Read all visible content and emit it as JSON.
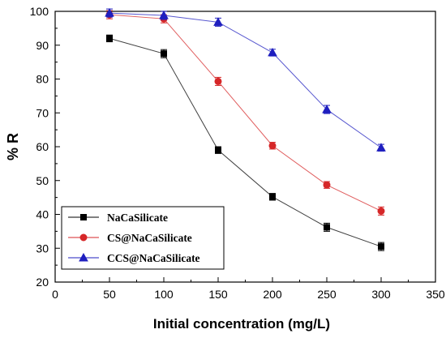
{
  "chart_data": {
    "type": "line",
    "xlabel": "Initial concentration (mg/L)",
    "ylabel": "% R",
    "xlim": [
      0,
      350
    ],
    "ylim": [
      20,
      100
    ],
    "x_ticks": [
      0,
      50,
      100,
      150,
      200,
      250,
      300,
      350
    ],
    "y_ticks": [
      20,
      30,
      40,
      50,
      60,
      70,
      80,
      90,
      100
    ],
    "grid": false,
    "legend_placement": "bottom-left",
    "x": [
      50,
      100,
      150,
      200,
      250,
      300
    ],
    "series": [
      {
        "name": "NaCaSilicate",
        "marker": "square",
        "color": "#000000",
        "values": [
          92,
          87.5,
          59,
          45.2,
          36.2,
          30.5
        ],
        "errors": [
          1.0,
          1.2,
          1.0,
          1.0,
          1.2,
          1.2
        ]
      },
      {
        "name": "CS@NaCaSilicate",
        "marker": "circle",
        "color": "#d62728",
        "values": [
          99,
          97.8,
          79.3,
          60.3,
          48.7,
          41
        ],
        "errors": [
          1.2,
          1.2,
          1.2,
          1.0,
          1.0,
          1.2
        ]
      },
      {
        "name": "CCS@NaCaSilicate",
        "marker": "triangle",
        "color": "#1f1fbf",
        "values": [
          99.5,
          98.8,
          96.8,
          87.8,
          71,
          59.7
        ],
        "errors": [
          1.2,
          1.2,
          1.2,
          1.0,
          1.2,
          1.0
        ]
      }
    ]
  }
}
